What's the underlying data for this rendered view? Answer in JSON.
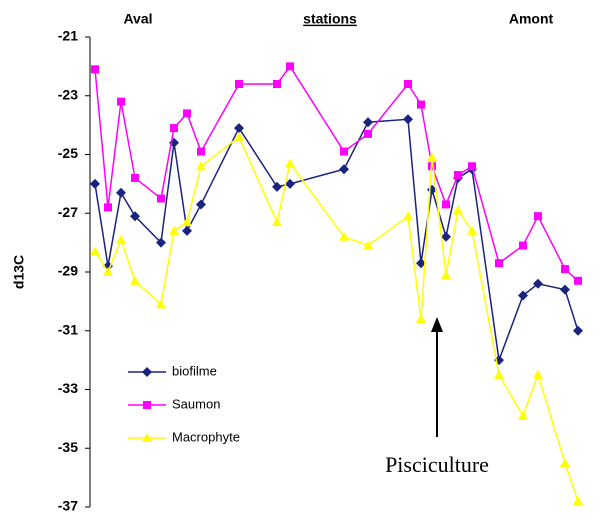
{
  "chart_data": {
    "type": "line",
    "labels_top": [
      "Aval",
      "stations",
      "Amont"
    ],
    "y_label": "d13C",
    "annotation": "Pisciculture",
    "x": [
      1,
      3.6,
      6.2,
      9,
      14.2,
      16.8,
      19.4,
      22.2,
      29.8,
      37.4,
      40,
      50.8,
      55.6,
      63.6,
      66.2,
      68.4,
      71.2,
      73.6,
      76.4,
      81.8,
      86.6,
      89.6,
      95,
      97.6
    ],
    "xlim": [
      0,
      100
    ],
    "ylim": [
      -37,
      -21
    ],
    "yticks": [
      -21,
      -23,
      -25,
      -27,
      -29,
      -31,
      -33,
      -35,
      -37
    ],
    "grid": false,
    "series": [
      {
        "name": "biofilme",
        "color": "#1a237e",
        "marker": "diamond",
        "values": [
          -26.0,
          -28.8,
          -26.3,
          -27.1,
          -28.0,
          -24.6,
          -27.6,
          -26.7,
          -24.1,
          -26.1,
          -26.0,
          -25.5,
          -23.9,
          -23.8,
          -28.7,
          -26.2,
          -27.8,
          -25.8,
          -25.5,
          -32.0,
          -29.8,
          -29.4,
          -29.6,
          -31.0
        ]
      },
      {
        "name": "Saumon",
        "color": "#ff00ff",
        "marker": "square",
        "values": [
          -22.1,
          -26.8,
          -23.2,
          -25.8,
          -26.5,
          -24.1,
          -23.6,
          -24.9,
          -22.6,
          -22.6,
          -22.0,
          -24.9,
          -24.3,
          -22.6,
          -23.3,
          -25.4,
          -26.7,
          -25.7,
          -25.4,
          -28.7,
          -28.1,
          -27.1,
          -28.9,
          -29.3
        ]
      },
      {
        "name": "Macrophyte",
        "color": "#ffff00",
        "marker": "triangle",
        "values": [
          -28.3,
          -29.0,
          -27.9,
          -29.3,
          -30.1,
          -27.6,
          -27.3,
          -25.4,
          -24.4,
          -27.3,
          -25.3,
          -27.8,
          -28.1,
          -27.1,
          -30.6,
          -25.1,
          -29.1,
          -26.9,
          -27.6,
          -32.5,
          -33.9,
          -32.5,
          -35.5,
          -36.8
        ]
      }
    ]
  }
}
